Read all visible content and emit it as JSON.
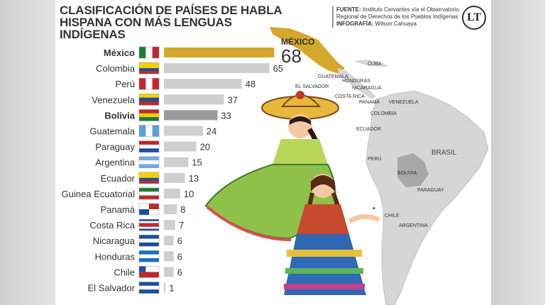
{
  "header": {
    "title_line1": "CLASIFICACIÓN DE PAÍSES DE HABLA",
    "title_line2": "HISPANA CON MÁS LENGUAS",
    "title_line3": "INDÍGENAS",
    "source_label": "FUENTE:",
    "source_text": "Instituto Cervantes vía el Observatorio Regional de Derechos de los Pueblos Indígenas",
    "credit_label": "INFOGRAFÍA:",
    "credit_text": "Wilson Cahuaya",
    "logo_text": "LT"
  },
  "colors": {
    "highlight_mexico": "#d4a82c",
    "highlight_bolivia": "#9a9a9a",
    "bar_default": "#cfcfcf",
    "map_land": "#d6d6d6",
    "map_mexico": "#d4a82c",
    "map_bolivia": "#a8a8a8"
  },
  "chart_data": {
    "type": "bar",
    "orientation": "horizontal",
    "title": "CLASIFICACIÓN DE PAÍSES DE HABLA HISPANA CON MÁS LENGUAS INDÍGENAS",
    "categories": [
      "México",
      "Colombia",
      "Perú",
      "Venezuela",
      "Bolivia",
      "Guatemala",
      "Paraguay",
      "Argentina",
      "Ecuador",
      "Guinea Ecuatorial",
      "Panamá",
      "Costa Rica",
      "Nicaragua",
      "Honduras",
      "Chile",
      "El Salvador"
    ],
    "values": [
      68,
      65,
      48,
      37,
      33,
      24,
      20,
      15,
      13,
      10,
      8,
      7,
      6,
      6,
      6,
      1
    ],
    "highlighted": [
      "México",
      "Bolivia"
    ],
    "xlim": [
      0,
      70
    ]
  },
  "callout": {
    "country": "MÉXICO",
    "value": "68"
  },
  "map_labels": [
    "CUBA",
    "GUATEMALA",
    "HONDURAS",
    "EL SALVADOR",
    "NICARAGUA",
    "COSTA RICA",
    "PANAMÁ",
    "VENEZUELA",
    "COLOMBIA",
    "ECUADOR",
    "PERÚ",
    "BRASIL",
    "BOLIVIA",
    "PARAGUAY",
    "CHILE",
    "ARGENTINA"
  ]
}
